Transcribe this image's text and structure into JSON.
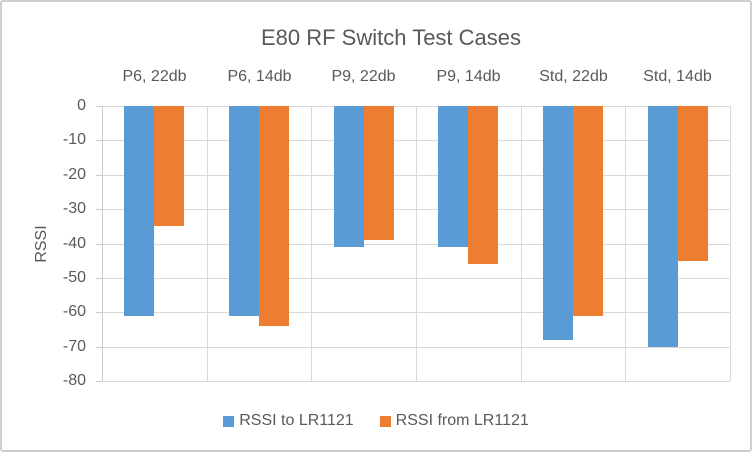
{
  "frame": {
    "background": "#ffffff",
    "border_color": "#cfcdcd"
  },
  "chart_data": {
    "type": "bar",
    "title": "E80 RF Switch Test Cases",
    "ylabel": "RSSI",
    "categories": [
      "P6, 22db",
      "P6, 14db",
      "P9, 22db",
      "P9, 14db",
      "Std, 22db",
      "Std, 14db"
    ],
    "series": [
      {
        "name": "RSSI to LR1121",
        "color": "#5B9BD5",
        "values": [
          -61,
          -61,
          -41,
          -41,
          -68,
          -70
        ]
      },
      {
        "name": "RSSI from LR1121",
        "color": "#ED7D31",
        "values": [
          -35,
          -64,
          -39,
          -46,
          -61,
          -45
        ]
      }
    ],
    "ylim": [
      -80,
      0
    ],
    "ytick_step": 10,
    "yticks": [
      0,
      -10,
      -20,
      -30,
      -40,
      -50,
      -60,
      -70,
      -80
    ],
    "grid": true,
    "legend_position": "bottom",
    "category_axis_position": "top",
    "text_color": "#595959",
    "gridline_color": "#D9D9D9",
    "axis_line_color": "#C9C9C9"
  }
}
